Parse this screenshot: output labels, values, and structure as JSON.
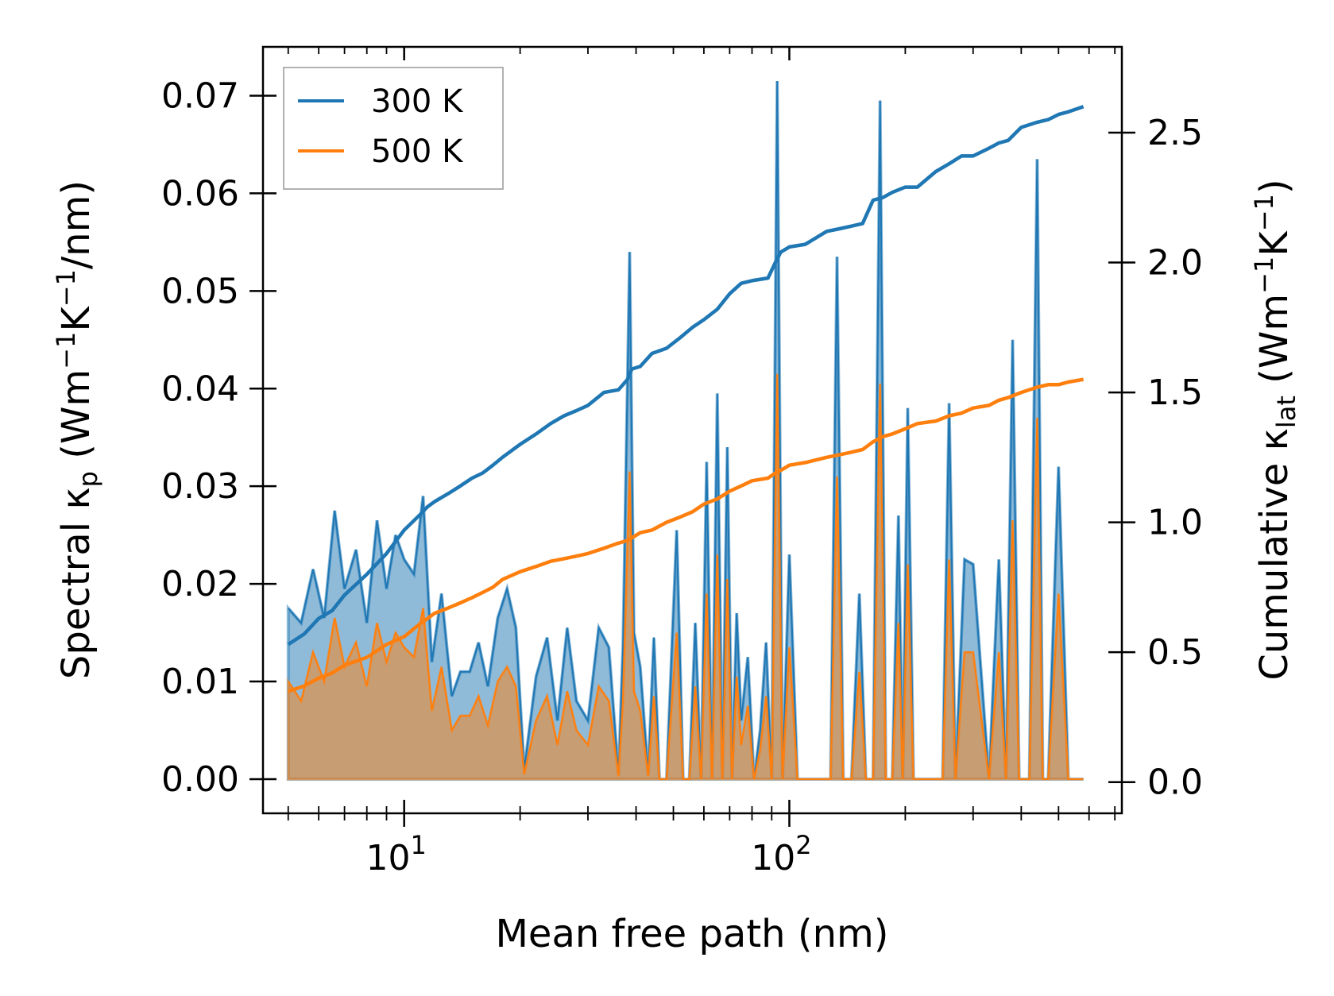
{
  "chart_data": {
    "type": "line",
    "xscale": "log",
    "xlabel": "Mean free path (nm)",
    "ylabel_left": "Spectral κp (Wm−1K−1/nm)",
    "ylabel_right": "Cumulative κlat (Wm−1K−1)",
    "ylim_left": [
      -0.0035,
      0.075
    ],
    "ylim_right": [
      -0.12,
      2.83
    ],
    "xlim": [
      4.3,
      730
    ],
    "yticks_left": [
      "0.00",
      "0.01",
      "0.02",
      "0.03",
      "0.04",
      "0.05",
      "0.06",
      "0.07"
    ],
    "yticks_right": [
      "0.0",
      "0.5",
      "1.0",
      "1.5",
      "2.0",
      "2.5"
    ],
    "xtick_base": "10",
    "xtick_exponents": [
      "1",
      "2"
    ],
    "legend": {
      "position": "top-left",
      "entries": [
        "300 K",
        "500 K"
      ]
    },
    "colors": {
      "300K": "#1f77b4",
      "500K": "#ff7f0e",
      "fill_300K": "#1f77b4",
      "fill_500K": "#ff7f0e"
    },
    "spectral": {
      "x": [
        5.0,
        5.4,
        5.8,
        6.2,
        6.6,
        7.0,
        7.5,
        8.0,
        8.5,
        9.0,
        9.5,
        10.0,
        10.6,
        11.2,
        11.8,
        12.5,
        13.3,
        14.0,
        14.8,
        15.6,
        16.5,
        17.5,
        18.5,
        19.5,
        20.5,
        22.0,
        23.5,
        25.0,
        26.5,
        28.0,
        30.0,
        32.0,
        34.0,
        36.0,
        37.0,
        38.5,
        39.5,
        41.0,
        43.0,
        44.5,
        46.0,
        48.0,
        51.0,
        53.0,
        55.0,
        57.0,
        59.0,
        61.0,
        63.0,
        65.0,
        67.0,
        69.0,
        71.0,
        73.0,
        75.0,
        78.0,
        81.0,
        84.0,
        87.0,
        90.0,
        93.0,
        96.0,
        100.0,
        105.0,
        112.0,
        120.0,
        128.0,
        133.0,
        138.0,
        145.0,
        152.0,
        158.0,
        165.0,
        172.0,
        178.0,
        185.0,
        192.0,
        197.0,
        203.0,
        210.0,
        230.0,
        250.0,
        260.0,
        270.0,
        285.0,
        300.0,
        330.0,
        350.0,
        365.0,
        380.0,
        395.0,
        420.0,
        440.0,
        455.0,
        470.0,
        500.0,
        530.0,
        545.0,
        560.0,
        580.0
      ],
      "k300": [
        0.0175,
        0.016,
        0.0215,
        0.0165,
        0.0275,
        0.0195,
        0.0235,
        0.016,
        0.0265,
        0.0195,
        0.025,
        0.0225,
        0.021,
        0.029,
        0.012,
        0.019,
        0.0085,
        0.011,
        0.011,
        0.014,
        0.0095,
        0.0165,
        0.0195,
        0.0155,
        0.001,
        0.0105,
        0.0145,
        0.006,
        0.0155,
        0.008,
        0.006,
        0.0155,
        0.0135,
        0.0005,
        0.0135,
        0.054,
        0.015,
        0.0115,
        0.0005,
        0.0145,
        0.0,
        0.0,
        0.0255,
        0.0,
        0.0,
        0.016,
        0.0,
        0.0325,
        0.0,
        0.0395,
        0.0,
        0.034,
        0.0,
        0.017,
        0.006,
        0.0125,
        0.0,
        0.005,
        0.014,
        0.0,
        0.0715,
        0.0,
        0.023,
        0.0,
        0.0,
        0.0,
        0.0,
        0.0535,
        0.0,
        0.0,
        0.019,
        0.0,
        0.0,
        0.0695,
        0.0,
        0.0,
        0.027,
        0.0,
        0.038,
        0.0,
        0.0,
        0.0,
        0.0385,
        0.0,
        0.0225,
        0.022,
        0.0,
        0.0225,
        0.0,
        0.045,
        0.0,
        0.0,
        0.0635,
        0.0,
        0.0,
        0.032,
        0.0,
        0.0,
        0.0,
        0.0
      ],
      "k500": [
        0.01,
        0.008,
        0.013,
        0.01,
        0.0165,
        0.0115,
        0.014,
        0.0095,
        0.016,
        0.012,
        0.015,
        0.0135,
        0.0125,
        0.0175,
        0.007,
        0.0115,
        0.005,
        0.0065,
        0.0065,
        0.0085,
        0.0055,
        0.01,
        0.0115,
        0.0095,
        0.0005,
        0.006,
        0.0085,
        0.0035,
        0.009,
        0.005,
        0.0035,
        0.0095,
        0.008,
        0.0003,
        0.008,
        0.0315,
        0.009,
        0.007,
        0.0003,
        0.0085,
        0.0,
        0.0,
        0.015,
        0.0,
        0.0,
        0.0095,
        0.0,
        0.019,
        0.0,
        0.023,
        0.0,
        0.0205,
        0.0,
        0.0105,
        0.0035,
        0.0075,
        0.0,
        0.003,
        0.0085,
        0.0,
        0.0415,
        0.0,
        0.0135,
        0.0,
        0.0,
        0.0,
        0.0,
        0.031,
        0.0,
        0.0,
        0.011,
        0.0,
        0.0,
        0.0405,
        0.0,
        0.0,
        0.016,
        0.0,
        0.022,
        0.0,
        0.0,
        0.0,
        0.0225,
        0.0,
        0.013,
        0.013,
        0.0,
        0.013,
        0.0,
        0.0265,
        0.0,
        0.0,
        0.037,
        0.0,
        0.0,
        0.019,
        0.0,
        0.0,
        0.0,
        0.0
      ]
    },
    "cumulative": {
      "x": [
        5.0,
        5.5,
        6.0,
        6.5,
        7.0,
        8.0,
        9.0,
        10.0,
        11.0,
        11.5,
        12.0,
        13.0,
        14.0,
        15.0,
        16.0,
        17.0,
        18.0,
        20.0,
        22.0,
        24.0,
        26.0,
        28.0,
        30.0,
        33.0,
        36.0,
        38.0,
        39.0,
        41.0,
        44.0,
        48.0,
        52.0,
        56.0,
        60.0,
        65.0,
        70.0,
        75.0,
        80.0,
        88.0,
        92.0,
        95.0,
        100.0,
        110.0,
        125.0,
        135.0,
        145.0,
        155.0,
        165.0,
        175.0,
        185.0,
        200.0,
        215.0,
        240.0,
        260.0,
        280.0,
        300.0,
        330.0,
        350.0,
        370.0,
        400.0,
        440.0,
        470.0,
        500.0,
        530.0,
        580.0
      ],
      "c300": [
        0.53,
        0.57,
        0.63,
        0.66,
        0.72,
        0.8,
        0.88,
        0.97,
        1.03,
        1.06,
        1.08,
        1.11,
        1.14,
        1.17,
        1.19,
        1.22,
        1.25,
        1.3,
        1.34,
        1.38,
        1.41,
        1.43,
        1.45,
        1.5,
        1.51,
        1.55,
        1.59,
        1.6,
        1.65,
        1.67,
        1.71,
        1.75,
        1.78,
        1.82,
        1.88,
        1.92,
        1.93,
        1.94,
        2.0,
        2.04,
        2.06,
        2.07,
        2.12,
        2.13,
        2.14,
        2.15,
        2.24,
        2.25,
        2.27,
        2.29,
        2.29,
        2.35,
        2.38,
        2.41,
        2.41,
        2.44,
        2.46,
        2.47,
        2.52,
        2.54,
        2.55,
        2.57,
        2.58,
        2.6
      ],
      "c500": [
        0.35,
        0.37,
        0.4,
        0.42,
        0.45,
        0.48,
        0.53,
        0.56,
        0.61,
        0.63,
        0.65,
        0.67,
        0.69,
        0.71,
        0.73,
        0.75,
        0.78,
        0.81,
        0.83,
        0.85,
        0.86,
        0.87,
        0.88,
        0.9,
        0.92,
        0.93,
        0.94,
        0.96,
        0.97,
        1.0,
        1.02,
        1.04,
        1.07,
        1.09,
        1.12,
        1.14,
        1.16,
        1.17,
        1.19,
        1.2,
        1.22,
        1.23,
        1.25,
        1.26,
        1.27,
        1.28,
        1.31,
        1.33,
        1.34,
        1.36,
        1.38,
        1.39,
        1.41,
        1.42,
        1.44,
        1.45,
        1.47,
        1.48,
        1.5,
        1.52,
        1.53,
        1.53,
        1.54,
        1.55
      ]
    }
  }
}
